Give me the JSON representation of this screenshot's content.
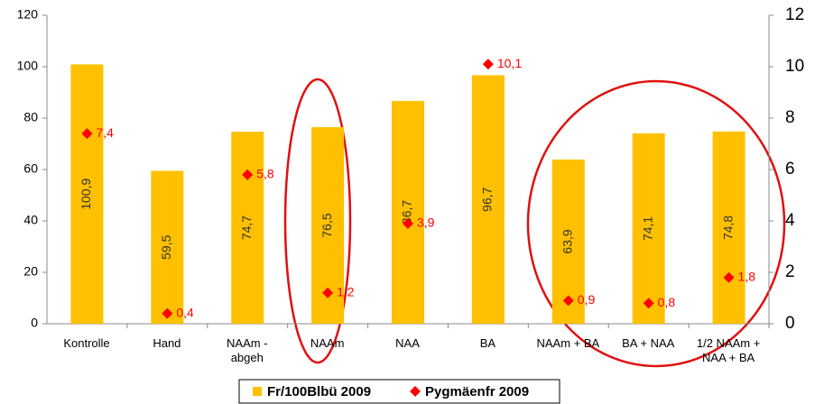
{
  "chart_data": {
    "type": "bar",
    "categories": [
      "Kontrolle",
      "Hand",
      "NAAm -\nabgeh",
      "NAAm",
      "NAA",
      "BA",
      "NAAm + BA",
      "BA + NAA",
      "1/2 NAAm +\nNAA + BA"
    ],
    "series": [
      {
        "name": "Fr/100Blbü 2009",
        "color": "#ffc000",
        "values": [
          100.9,
          59.5,
          74.7,
          76.5,
          86.7,
          96.7,
          63.9,
          74.1,
          74.8
        ],
        "value_labels": [
          "100,9",
          "59,5",
          "74,7",
          "76,5",
          "86,7",
          "96,7",
          "63,9",
          "74,1",
          "74,8"
        ]
      },
      {
        "name": "Pygmäenfr 2009",
        "color": "#ff0000",
        "axis": "y2",
        "values": [
          7.4,
          0.4,
          5.8,
          1.2,
          3.9,
          10.1,
          0.9,
          0.8,
          1.8
        ],
        "value_labels": [
          "7,4",
          "0,4",
          "5,8",
          "1,2",
          "3,9",
          "10,1",
          "0,9",
          "0,8",
          "1,8"
        ]
      }
    ],
    "ylim": [
      0,
      120
    ],
    "yticks": [
      0,
      20,
      40,
      60,
      80,
      100,
      120
    ],
    "y2lim": [
      0,
      12
    ],
    "y2ticks": [
      0,
      2,
      4,
      6,
      8,
      10,
      12
    ],
    "grid": false,
    "legend": "bottom"
  }
}
